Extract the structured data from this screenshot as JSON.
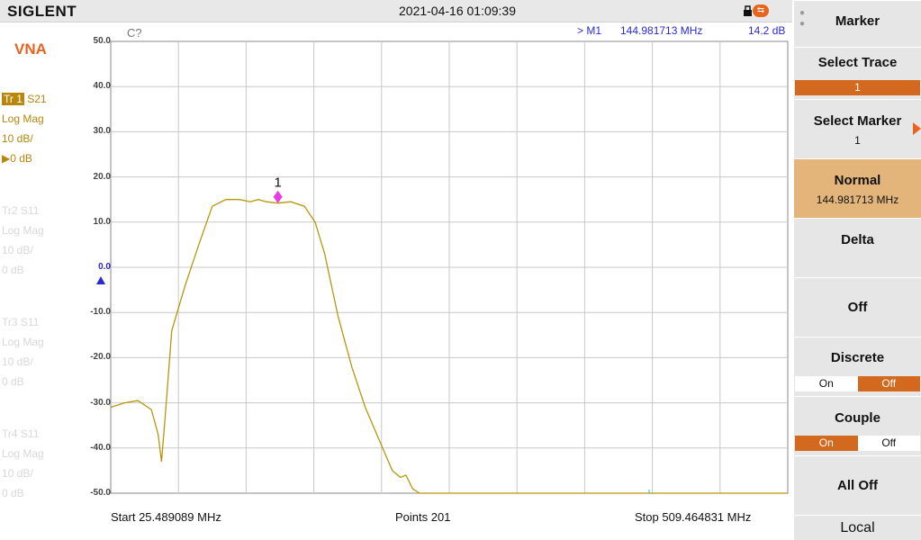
{
  "header": {
    "brand": "SIGLENT",
    "datetime": "2021-04-16 01:09:39",
    "icons": [
      "lock-icon",
      "usb-icon"
    ]
  },
  "left_panel": {
    "mode": "VNA",
    "traces": [
      {
        "id": "Tr 1",
        "param": "S21",
        "format": "Log Mag",
        "scale": "10 dB/",
        "ref": "▶0 dB",
        "active": true
      },
      {
        "id": "Tr2",
        "param": "S11",
        "format": "Log Mag",
        "scale": "10 dB/",
        "ref": "0 dB",
        "active": false
      },
      {
        "id": "Tr3",
        "param": "S11",
        "format": "Log Mag",
        "scale": "10 dB/",
        "ref": "0 dB",
        "active": false
      },
      {
        "id": "Tr4",
        "param": "S11",
        "format": "Log Mag",
        "scale": "10 dB/",
        "ref": "0 dB",
        "active": false
      }
    ]
  },
  "plot": {
    "cal_status": "C?",
    "marker_readout": {
      "name": "> M1",
      "freq": "144.981713 MHz",
      "value": "14.2 dB"
    },
    "y_tick_labels": [
      "50.0",
      "40.0",
      "30.0",
      "20.0",
      "10.0",
      "0.0",
      "-10.0",
      "-20.0",
      "-30.0",
      "-40.0",
      "-50.0"
    ],
    "marker_label": "1",
    "footer": {
      "start": "Start  25.489089 MHz",
      "points": "Points  201",
      "stop": "Stop  509.464831 MHz"
    },
    "colors": {
      "trace": "#b8960c",
      "marker": "#e83be8",
      "ref_marker": "#2a2ad0",
      "grid": "#c8c8c8"
    }
  },
  "softkeys": {
    "menu_title": "Marker",
    "select_trace": {
      "label": "Select Trace",
      "value": "1"
    },
    "select_marker": {
      "label": "Select Marker",
      "value": "1"
    },
    "normal": {
      "label": "Normal",
      "value": "144.981713 MHz"
    },
    "delta": {
      "label": "Delta"
    },
    "off": {
      "label": "Off"
    },
    "discrete": {
      "label": "Discrete",
      "on": "On",
      "off": "Off",
      "selected": "Off"
    },
    "couple": {
      "label": "Couple",
      "on": "On",
      "off": "Off",
      "selected": "On"
    },
    "all_off": {
      "label": "All Off"
    },
    "local": {
      "label": "Local"
    }
  },
  "chart_data": {
    "type": "line",
    "title": "",
    "xlabel": "",
    "ylabel": "",
    "xlim": [
      25.489089,
      509.464831
    ],
    "ylim": [
      -50,
      50
    ],
    "grid": true,
    "series": [
      {
        "x": [
          25.49,
          35.2,
          44.9,
          54.5,
          59.4,
          61.8,
          64.2,
          69.1,
          78.7,
          88.4,
          98.1,
          107.8,
          117.5,
          125.2,
          131.0,
          136.8,
          144.98,
          154.2,
          163.9,
          171.6,
          178.4,
          188.1,
          197.8,
          207.4,
          217.1,
          226.8,
          232.6,
          236.5,
          241.3,
          246.2,
          509.46
        ],
        "y": [
          -31.0,
          -30.0,
          -29.5,
          -31.5,
          -37.0,
          -43.0,
          -34.0,
          -14.0,
          -4.0,
          5.0,
          13.5,
          15.0,
          15.0,
          14.5,
          15.0,
          14.5,
          14.2,
          14.5,
          13.5,
          10.0,
          3.0,
          -11.0,
          -22.0,
          -31.0,
          -38.0,
          -45.0,
          -46.5,
          -46.0,
          -49.0,
          -50.0,
          -50.0
        ]
      }
    ],
    "marker": {
      "name": "1",
      "x": 144.981713,
      "y": 14.2
    }
  }
}
